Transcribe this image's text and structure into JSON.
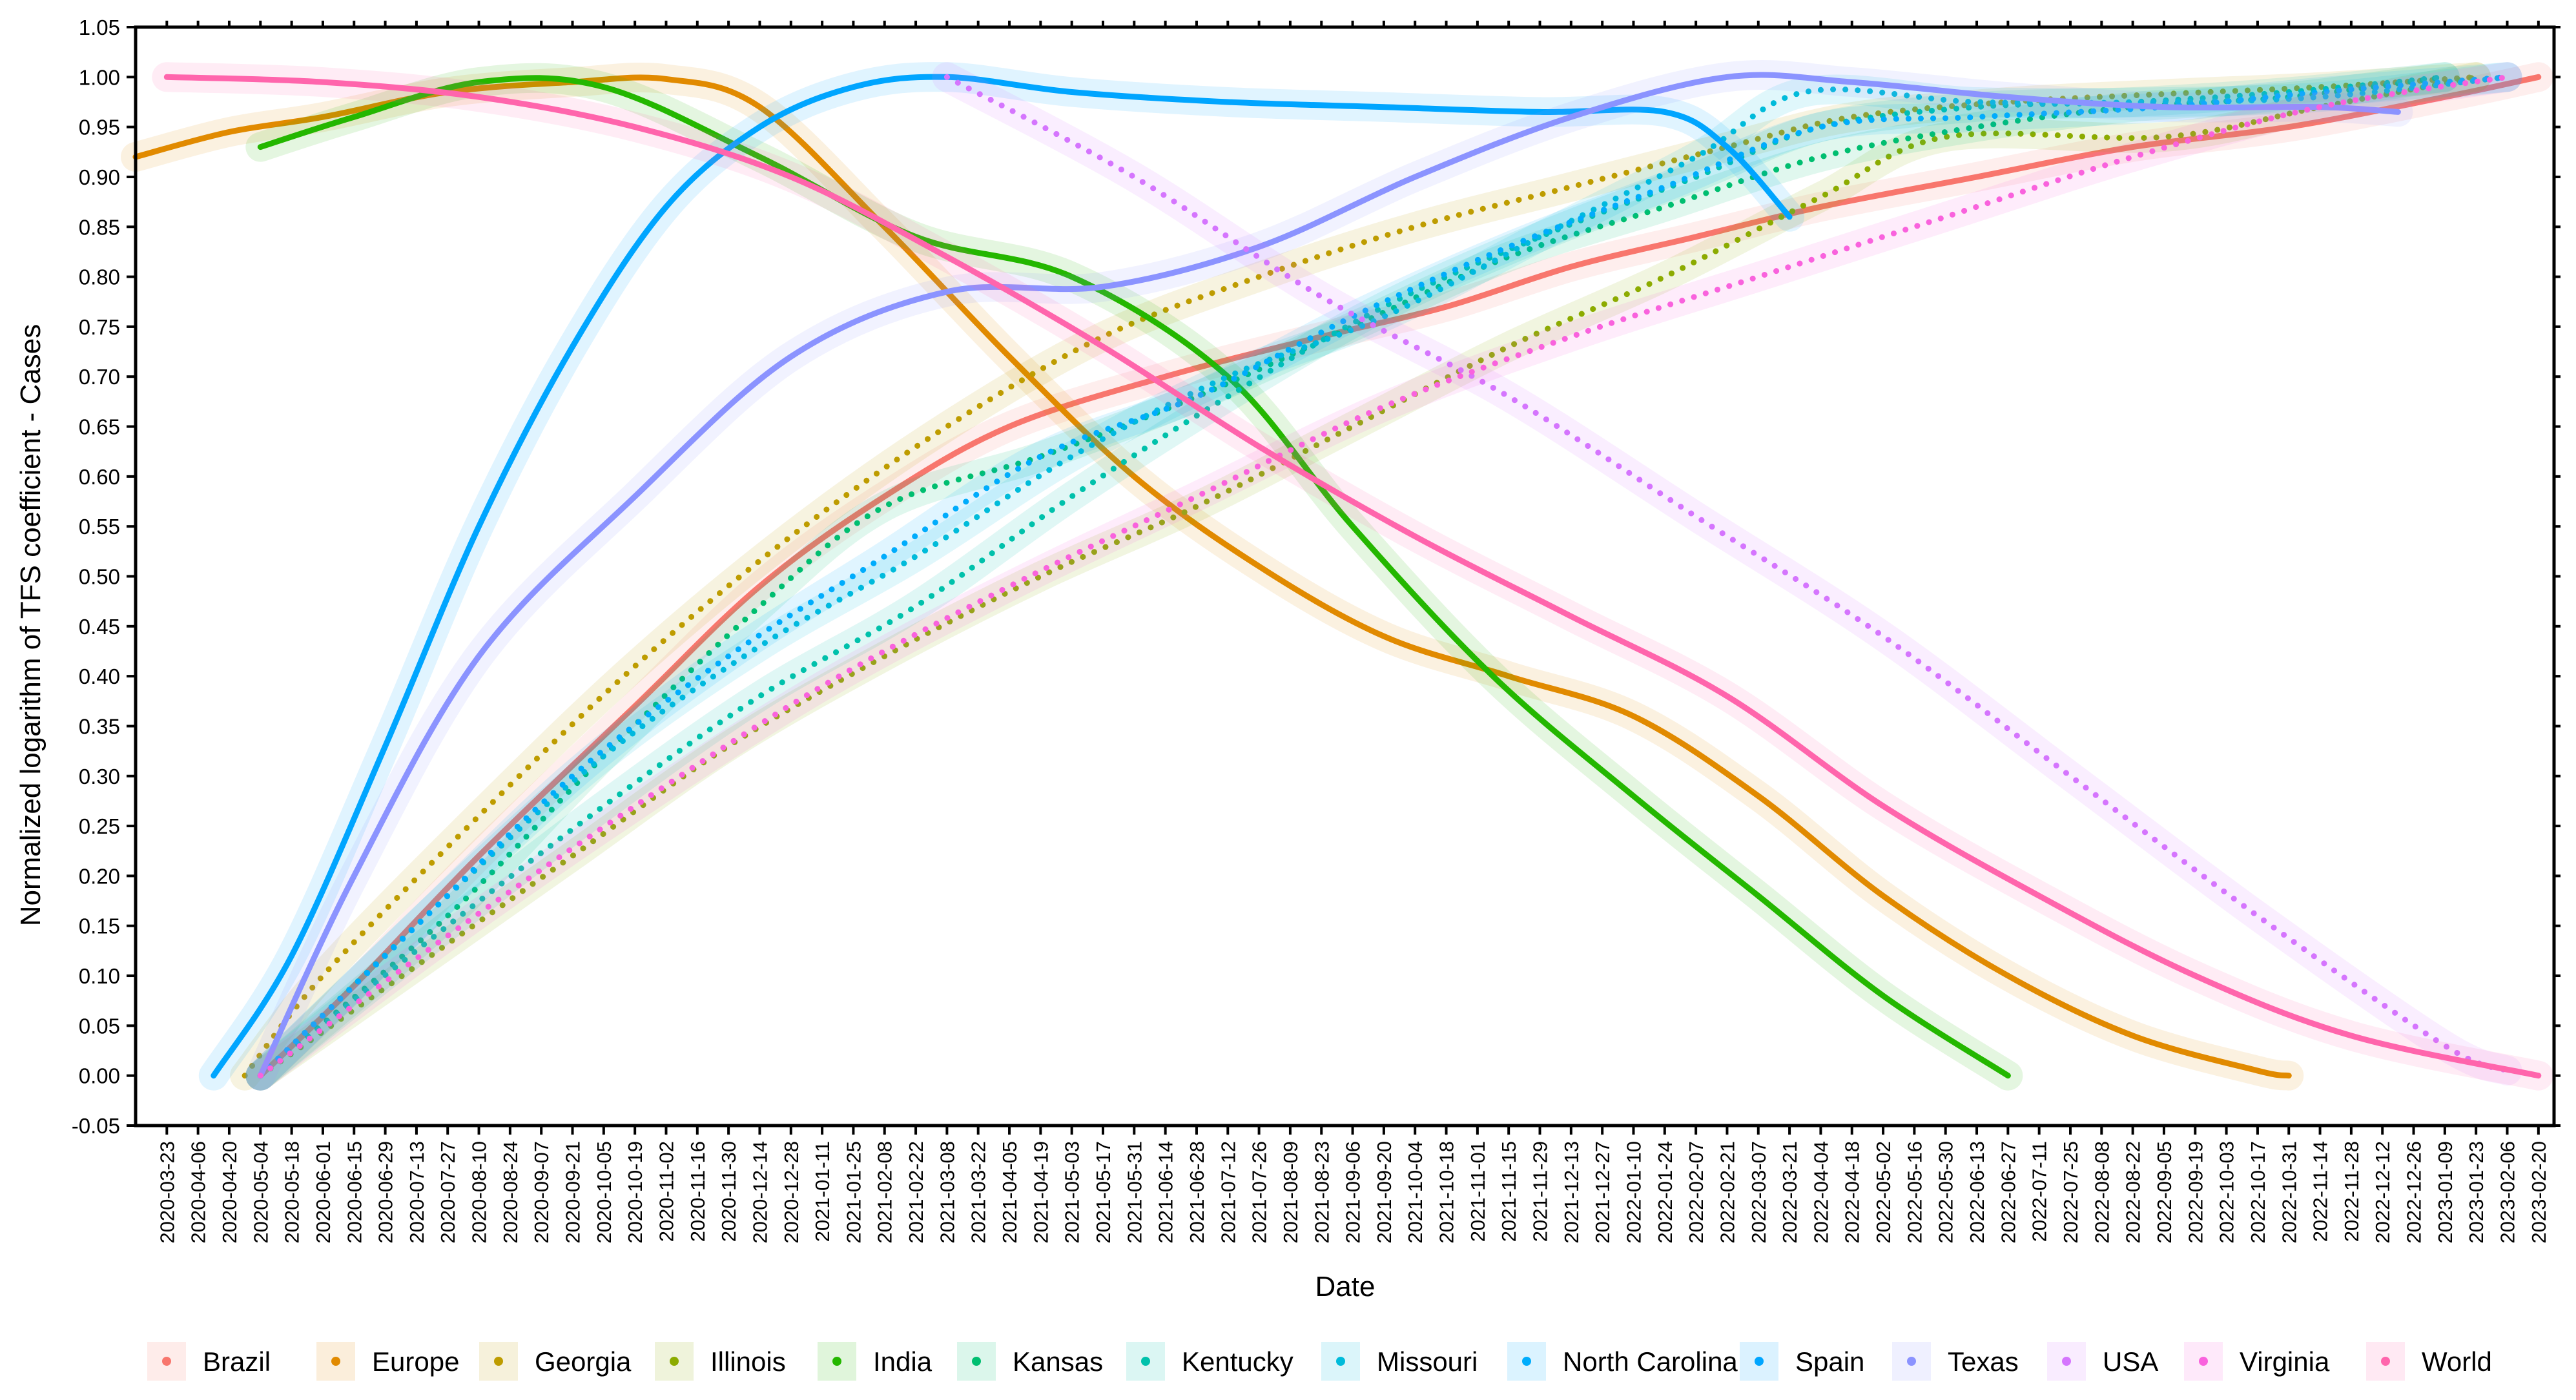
{
  "chart_data": {
    "type": "line",
    "title": "",
    "xlabel": "Date",
    "ylabel": "Normalized logarithm of TFS coefficient - Cases",
    "ylim": [
      -0.05,
      1.05
    ],
    "xlim": [
      "2020-03-09",
      "2023-02-27"
    ],
    "y_ticks": [
      "-0.05",
      "0.00",
      "0.05",
      "0.10",
      "0.15",
      "0.20",
      "0.25",
      "0.30",
      "0.35",
      "0.40",
      "0.45",
      "0.50",
      "0.55",
      "0.60",
      "0.65",
      "0.70",
      "0.75",
      "0.80",
      "0.85",
      "0.90",
      "0.95",
      "1.00",
      "1.05"
    ],
    "x_ticks": [
      "2020-03-23",
      "2020-04-06",
      "2020-04-20",
      "2020-05-04",
      "2020-05-18",
      "2020-06-01",
      "2020-06-15",
      "2020-06-29",
      "2020-07-13",
      "2020-07-27",
      "2020-08-10",
      "2020-08-24",
      "2020-09-07",
      "2020-09-21",
      "2020-10-05",
      "2020-10-19",
      "2020-11-02",
      "2020-11-16",
      "2020-11-30",
      "2020-12-14",
      "2020-12-28",
      "2021-01-11",
      "2021-01-25",
      "2021-02-08",
      "2021-02-22",
      "2021-03-08",
      "2021-03-22",
      "2021-04-05",
      "2021-04-19",
      "2021-05-03",
      "2021-05-17",
      "2021-05-31",
      "2021-06-14",
      "2021-06-28",
      "2021-07-12",
      "2021-07-26",
      "2021-08-09",
      "2021-08-23",
      "2021-09-06",
      "2021-09-20",
      "2021-10-04",
      "2021-10-18",
      "2021-11-01",
      "2021-11-15",
      "2021-11-29",
      "2021-12-13",
      "2021-12-27",
      "2022-01-10",
      "2022-01-24",
      "2022-02-07",
      "2022-02-21",
      "2022-03-07",
      "2022-03-21",
      "2022-04-04",
      "2022-04-18",
      "2022-05-02",
      "2022-05-16",
      "2022-05-30",
      "2022-06-13",
      "2022-06-27",
      "2022-07-11",
      "2022-07-25",
      "2022-08-08",
      "2022-08-22",
      "2022-09-05",
      "2022-09-19",
      "2022-10-03",
      "2022-10-17",
      "2022-10-31",
      "2022-11-14",
      "2022-11-28",
      "2022-12-12",
      "2022-12-26",
      "2023-01-09",
      "2023-01-23",
      "2023-02-06",
      "2023-02-20"
    ],
    "grid": false,
    "legend_position": "bottom",
    "series": [
      {
        "name": "Brazil",
        "color": "#F8766D",
        "dash": "solid",
        "x": [
          "2020-05-04",
          "2020-06-15",
          "2020-08-10",
          "2020-10-19",
          "2020-12-14",
          "2021-02-08",
          "2021-04-05",
          "2021-06-14",
          "2021-08-23",
          "2021-10-18",
          "2021-12-13",
          "2022-02-07",
          "2022-04-04",
          "2022-06-13",
          "2022-08-22",
          "2022-10-31",
          "2023-01-09",
          "2023-02-20"
        ],
        "y": [
          0.0,
          0.09,
          0.22,
          0.37,
          0.49,
          0.58,
          0.65,
          0.7,
          0.74,
          0.77,
          0.81,
          0.84,
          0.87,
          0.9,
          0.93,
          0.95,
          0.98,
          1.0
        ]
      },
      {
        "name": "Europe",
        "color": "#E18A00",
        "dash": "solid",
        "x": [
          "2020-03-09",
          "2020-04-20",
          "2020-06-01",
          "2020-07-27",
          "2020-09-21",
          "2020-11-02",
          "2020-12-14",
          "2021-02-08",
          "2021-04-05",
          "2021-05-31",
          "2021-07-26",
          "2021-09-20",
          "2021-11-15",
          "2022-01-10",
          "2022-03-07",
          "2022-05-02",
          "2022-06-27",
          "2022-08-22",
          "2022-10-17",
          "2022-10-31"
        ],
        "y": [
          0.92,
          0.945,
          0.96,
          0.985,
          0.995,
          0.998,
          0.97,
          0.85,
          0.72,
          0.6,
          0.51,
          0.44,
          0.4,
          0.36,
          0.28,
          0.18,
          0.1,
          0.04,
          0.005,
          0.0
        ]
      },
      {
        "name": "Georgia",
        "color": "#BE9C00",
        "dash": "dotted",
        "x": [
          "2020-04-27",
          "2020-06-01",
          "2020-08-10",
          "2020-10-19",
          "2020-12-28",
          "2021-03-08",
          "2021-05-17",
          "2021-07-26",
          "2021-10-04",
          "2021-12-13",
          "2022-02-21",
          "2022-04-18",
          "2022-06-27",
          "2022-09-05",
          "2022-11-14",
          "2023-01-23"
        ],
        "y": [
          0.0,
          0.1,
          0.26,
          0.41,
          0.54,
          0.65,
          0.74,
          0.8,
          0.85,
          0.89,
          0.93,
          0.96,
          0.975,
          0.983,
          0.99,
          1.0
        ]
      },
      {
        "name": "Illinois",
        "color": "#8CAB00",
        "dash": "dotted",
        "x": [
          "2020-05-04",
          "2020-07-13",
          "2020-09-21",
          "2020-11-30",
          "2021-02-08",
          "2021-04-19",
          "2021-06-28",
          "2021-09-06",
          "2021-11-15",
          "2022-01-24",
          "2022-04-04",
          "2022-05-30",
          "2022-09-05",
          "2022-11-14",
          "2023-01-23"
        ],
        "y": [
          0.0,
          0.11,
          0.22,
          0.33,
          0.42,
          0.5,
          0.57,
          0.65,
          0.73,
          0.8,
          0.88,
          0.94,
          0.94,
          0.97,
          1.0
        ]
      },
      {
        "name": "India",
        "color": "#24B700",
        "dash": "solid",
        "x": [
          "2020-05-04",
          "2020-06-15",
          "2020-08-10",
          "2020-10-05",
          "2020-12-14",
          "2021-02-22",
          "2021-05-03",
          "2021-07-12",
          "2021-09-06",
          "2021-11-08",
          "2022-01-10",
          "2022-03-07",
          "2022-05-02",
          "2022-06-27"
        ],
        "y": [
          0.93,
          0.96,
          0.995,
          0.99,
          0.92,
          0.84,
          0.8,
          0.7,
          0.55,
          0.4,
          0.28,
          0.18,
          0.08,
          0.0
        ]
      },
      {
        "name": "Kansas",
        "color": "#00BE70",
        "dash": "dotted",
        "x": [
          "2020-05-04",
          "2020-07-27",
          "2020-10-05",
          "2020-12-14",
          "2021-02-08",
          "2021-04-19",
          "2021-06-28",
          "2021-09-06",
          "2021-11-15",
          "2022-01-24",
          "2022-04-04",
          "2022-06-13",
          "2022-08-22",
          "2022-10-31",
          "2023-01-09"
        ],
        "y": [
          0.0,
          0.16,
          0.32,
          0.47,
          0.57,
          0.62,
          0.68,
          0.75,
          0.82,
          0.87,
          0.92,
          0.95,
          0.97,
          0.98,
          1.0
        ]
      },
      {
        "name": "Kentucky",
        "color": "#00C1AB",
        "dash": "dotted",
        "x": [
          "2020-05-04",
          "2020-07-27",
          "2020-10-05",
          "2020-12-14",
          "2021-02-22",
          "2021-05-03",
          "2021-07-12",
          "2021-09-20",
          "2021-11-29",
          "2022-02-07",
          "2022-04-04",
          "2022-06-13",
          "2022-08-22",
          "2022-10-31",
          "2023-01-09"
        ],
        "y": [
          0.0,
          0.15,
          0.27,
          0.38,
          0.47,
          0.58,
          0.68,
          0.77,
          0.84,
          0.9,
          0.95,
          0.97,
          0.975,
          0.985,
          1.0
        ]
      },
      {
        "name": "Missouri",
        "color": "#00BBDA",
        "dash": "dotted",
        "x": [
          "2020-05-04",
          "2020-07-27",
          "2020-10-05",
          "2020-12-14",
          "2021-02-22",
          "2021-05-03",
          "2021-07-12",
          "2021-09-20",
          "2021-11-29",
          "2022-02-07",
          "2022-03-28",
          "2022-06-13",
          "2022-09-05",
          "2022-11-14",
          "2023-02-06"
        ],
        "y": [
          0.0,
          0.18,
          0.32,
          0.43,
          0.52,
          0.62,
          0.7,
          0.76,
          0.84,
          0.92,
          0.985,
          0.975,
          0.975,
          0.98,
          1.0
        ]
      },
      {
        "name": "North Carolina",
        "color": "#00ACFC",
        "dash": "dotted",
        "x": [
          "2020-05-04",
          "2020-07-13",
          "2020-09-21",
          "2020-11-30",
          "2021-02-08",
          "2021-04-19",
          "2021-06-28",
          "2021-09-06",
          "2021-11-15",
          "2022-01-24",
          "2022-04-04",
          "2022-06-13",
          "2022-09-05",
          "2022-11-14",
          "2023-02-06"
        ],
        "y": [
          0.0,
          0.15,
          0.3,
          0.42,
          0.52,
          0.62,
          0.68,
          0.76,
          0.83,
          0.89,
          0.95,
          0.96,
          0.97,
          0.985,
          1.0
        ]
      },
      {
        "name": "Spain",
        "color": "#00A5FF",
        "dash": "solid",
        "x": [
          "2020-04-13",
          "2020-05-18",
          "2020-06-29",
          "2020-08-10",
          "2020-09-21",
          "2020-11-02",
          "2020-12-14",
          "2021-01-25",
          "2021-03-08",
          "2021-05-03",
          "2021-07-12",
          "2021-09-20",
          "2021-11-29",
          "2022-01-24",
          "2022-02-21",
          "2022-03-21"
        ],
        "y": [
          0.0,
          0.12,
          0.33,
          0.55,
          0.73,
          0.87,
          0.95,
          0.99,
          1.0,
          0.985,
          0.975,
          0.97,
          0.965,
          0.965,
          0.93,
          0.86
        ]
      },
      {
        "name": "Texas",
        "color": "#8B93FF",
        "dash": "solid",
        "x": [
          "2020-05-04",
          "2020-06-15",
          "2020-08-10",
          "2020-10-19",
          "2020-12-28",
          "2021-03-08",
          "2021-05-17",
          "2021-07-26",
          "2021-10-04",
          "2021-12-13",
          "2022-02-21",
          "2022-04-18",
          "2022-06-27",
          "2022-09-05",
          "2022-11-14",
          "2022-12-19"
        ],
        "y": [
          0.0,
          0.2,
          0.42,
          0.58,
          0.72,
          0.785,
          0.79,
          0.83,
          0.9,
          0.96,
          1.0,
          0.995,
          0.98,
          0.97,
          0.97,
          0.965
        ]
      },
      {
        "name": "USA",
        "color": "#D575FE",
        "dash": "dotted",
        "x": [
          "2021-03-08",
          "2021-05-31",
          "2021-08-23",
          "2021-11-15",
          "2022-02-07",
          "2022-05-02",
          "2022-07-25",
          "2022-10-17",
          "2023-01-09",
          "2023-02-06"
        ],
        "y": [
          1.0,
          0.9,
          0.78,
          0.68,
          0.56,
          0.44,
          0.3,
          0.16,
          0.03,
          0.005
        ]
      },
      {
        "name": "Virginia",
        "color": "#F962DD",
        "dash": "dotted",
        "x": [
          "2020-05-04",
          "2020-07-27",
          "2020-10-19",
          "2021-01-11",
          "2021-04-05",
          "2021-06-28",
          "2021-09-20",
          "2021-12-13",
          "2022-03-07",
          "2022-05-30",
          "2022-08-22",
          "2022-11-14",
          "2023-02-06"
        ],
        "y": [
          0.0,
          0.14,
          0.27,
          0.39,
          0.49,
          0.58,
          0.67,
          0.74,
          0.8,
          0.86,
          0.92,
          0.97,
          1.0
        ]
      },
      {
        "name": "World",
        "color": "#FF65AC",
        "dash": "solid",
        "x": [
          "2020-03-23",
          "2020-06-01",
          "2020-08-10",
          "2020-10-19",
          "2020-12-28",
          "2021-03-08",
          "2021-05-17",
          "2021-07-26",
          "2021-10-04",
          "2021-12-13",
          "2022-02-21",
          "2022-05-02",
          "2022-07-11",
          "2022-09-19",
          "2022-11-28",
          "2023-02-20"
        ],
        "y": [
          1.0,
          0.995,
          0.98,
          0.95,
          0.9,
          0.82,
          0.73,
          0.63,
          0.54,
          0.46,
          0.38,
          0.27,
          0.18,
          0.1,
          0.04,
          0.0
        ]
      }
    ]
  }
}
